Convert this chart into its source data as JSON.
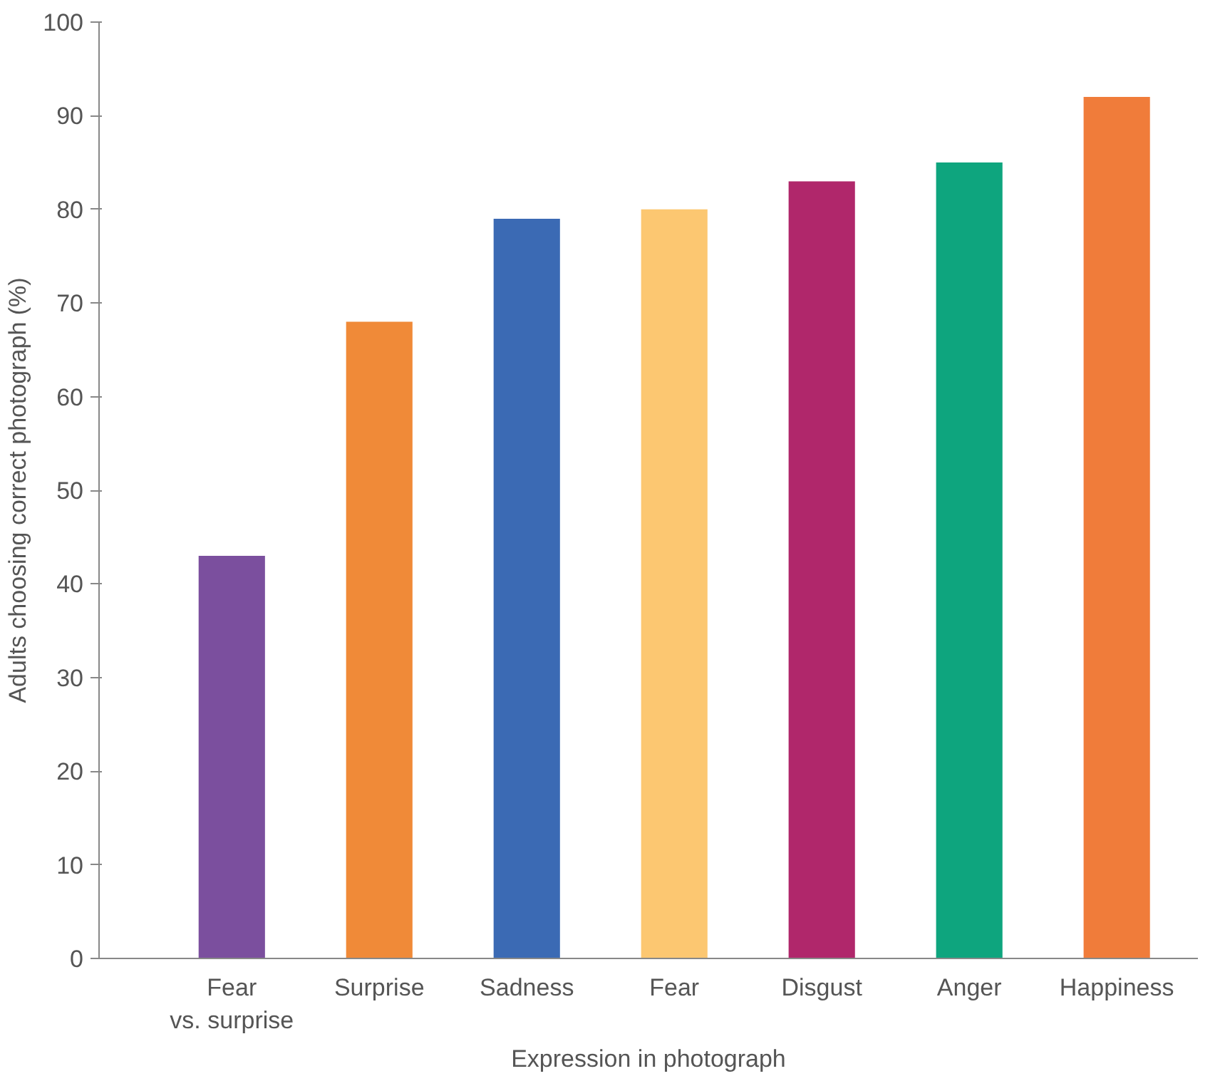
{
  "chart_data": {
    "type": "bar",
    "xlabel": "Expression in photograph",
    "ylabel": "Adults choosing correct photograph (%)",
    "categories": [
      "Fear vs. surprise",
      "Surprise",
      "Sadness",
      "Fear",
      "Disgust",
      "Anger",
      "Happiness"
    ],
    "values": [
      43,
      68,
      79,
      80,
      83,
      85,
      92
    ],
    "colors": [
      "#7b4f9e",
      "#f08a38",
      "#3b6ab4",
      "#fcc771",
      "#b0276b",
      "#0ea57e",
      "#f07c3a"
    ],
    "ylim": [
      0,
      100
    ],
    "yticks": [
      0,
      10,
      20,
      30,
      40,
      50,
      60,
      70,
      80,
      90,
      100
    ],
    "grid": false
  }
}
